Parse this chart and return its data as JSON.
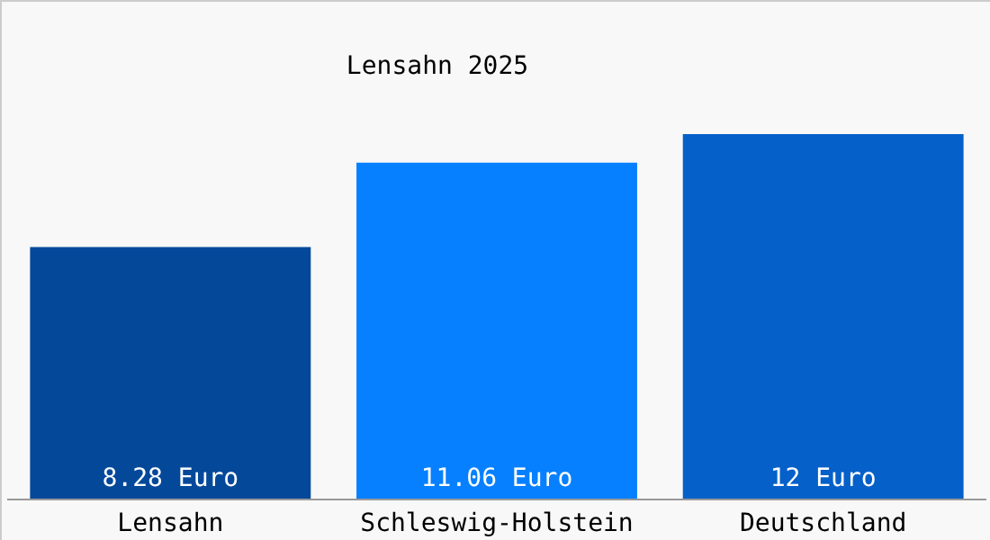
{
  "chart_data": {
    "type": "bar",
    "title": "Lensahn 2025",
    "categories": [
      "Lensahn",
      "Schleswig-Holstein",
      "Deutschland"
    ],
    "values": [
      8.28,
      11.06,
      12
    ],
    "colors": [
      "#04489a",
      "#0780ff",
      "#0561c9"
    ],
    "value_labels": [
      "8.28 Euro",
      "11.06 Euro",
      "12 Euro"
    ],
    "tick_labels": "x",
    "grid": false
  }
}
